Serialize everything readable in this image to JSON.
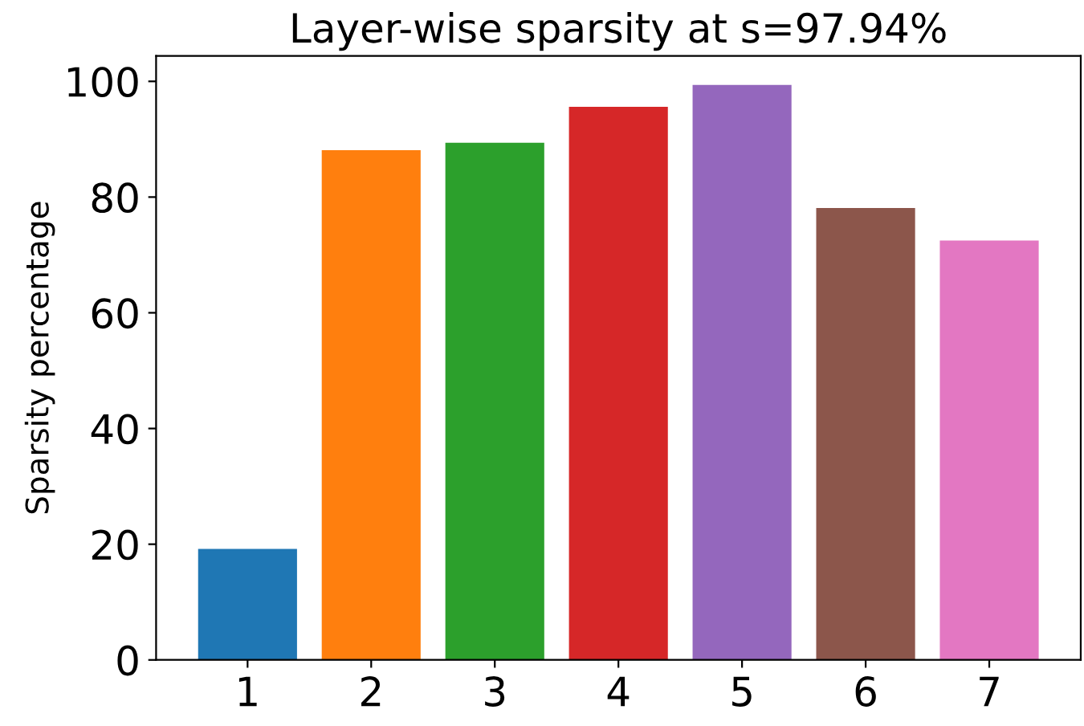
{
  "chart_data": {
    "type": "bar",
    "title": "Layer-wise sparsity at s=97.94%",
    "ylabel": "Sparsity percentage",
    "categories": [
      "1",
      "2",
      "3",
      "4",
      "5",
      "6",
      "7"
    ],
    "values": [
      19.2,
      88.1,
      89.4,
      95.6,
      99.4,
      78.1,
      72.5
    ],
    "colors": [
      "#1f77b4",
      "#ff7f0e",
      "#2ca02c",
      "#d62728",
      "#9467bd",
      "#8c564b",
      "#e377c2"
    ],
    "ylim": [
      0,
      104.4
    ],
    "yticks": [
      0,
      20,
      40,
      60,
      80,
      100
    ],
    "grid": false,
    "legend": false
  }
}
